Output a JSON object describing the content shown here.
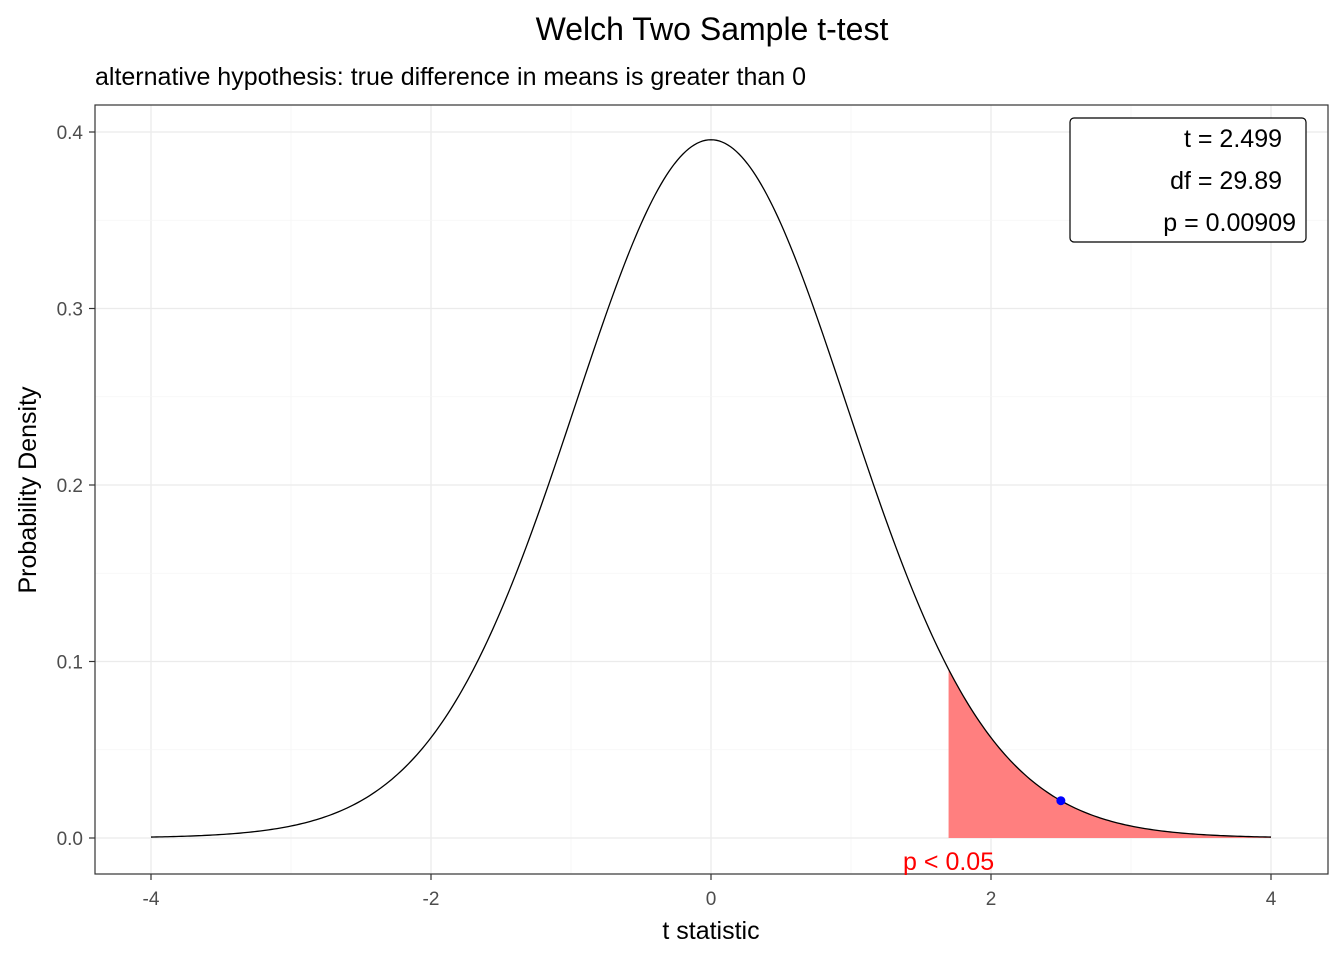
{
  "chart_data": {
    "type": "area",
    "title": "Welch Two Sample t-test",
    "subtitle": "alternative hypothesis: true difference in means is greater than 0",
    "xlabel": "t statistic",
    "ylabel": "Probability Density",
    "xlim": [
      -4,
      4
    ],
    "ylim": [
      0,
      0.4
    ],
    "x_ticks": [
      -4,
      -2,
      0,
      2,
      4
    ],
    "x_tick_labels": [
      "-4",
      "-2",
      "0",
      "2",
      "4"
    ],
    "y_ticks": [
      0.0,
      0.1,
      0.2,
      0.3,
      0.4
    ],
    "y_tick_labels": [
      "0.0",
      "0.1",
      "0.2",
      "0.3",
      "0.4"
    ],
    "grid": true,
    "df": 29.89,
    "t_observed": 2.499,
    "critical_value": 1.697,
    "rejection_region_color": "#ff7f7f",
    "curve_color": "#000000",
    "point_color": "#0000ff",
    "annotation": {
      "text": "p < 0.05",
      "x": 1.697,
      "color": "#ff0000"
    },
    "stats_box": {
      "position": "top-right",
      "lines": [
        "t = 2.499",
        "df = 29.89",
        "p = 0.00909"
      ]
    }
  }
}
